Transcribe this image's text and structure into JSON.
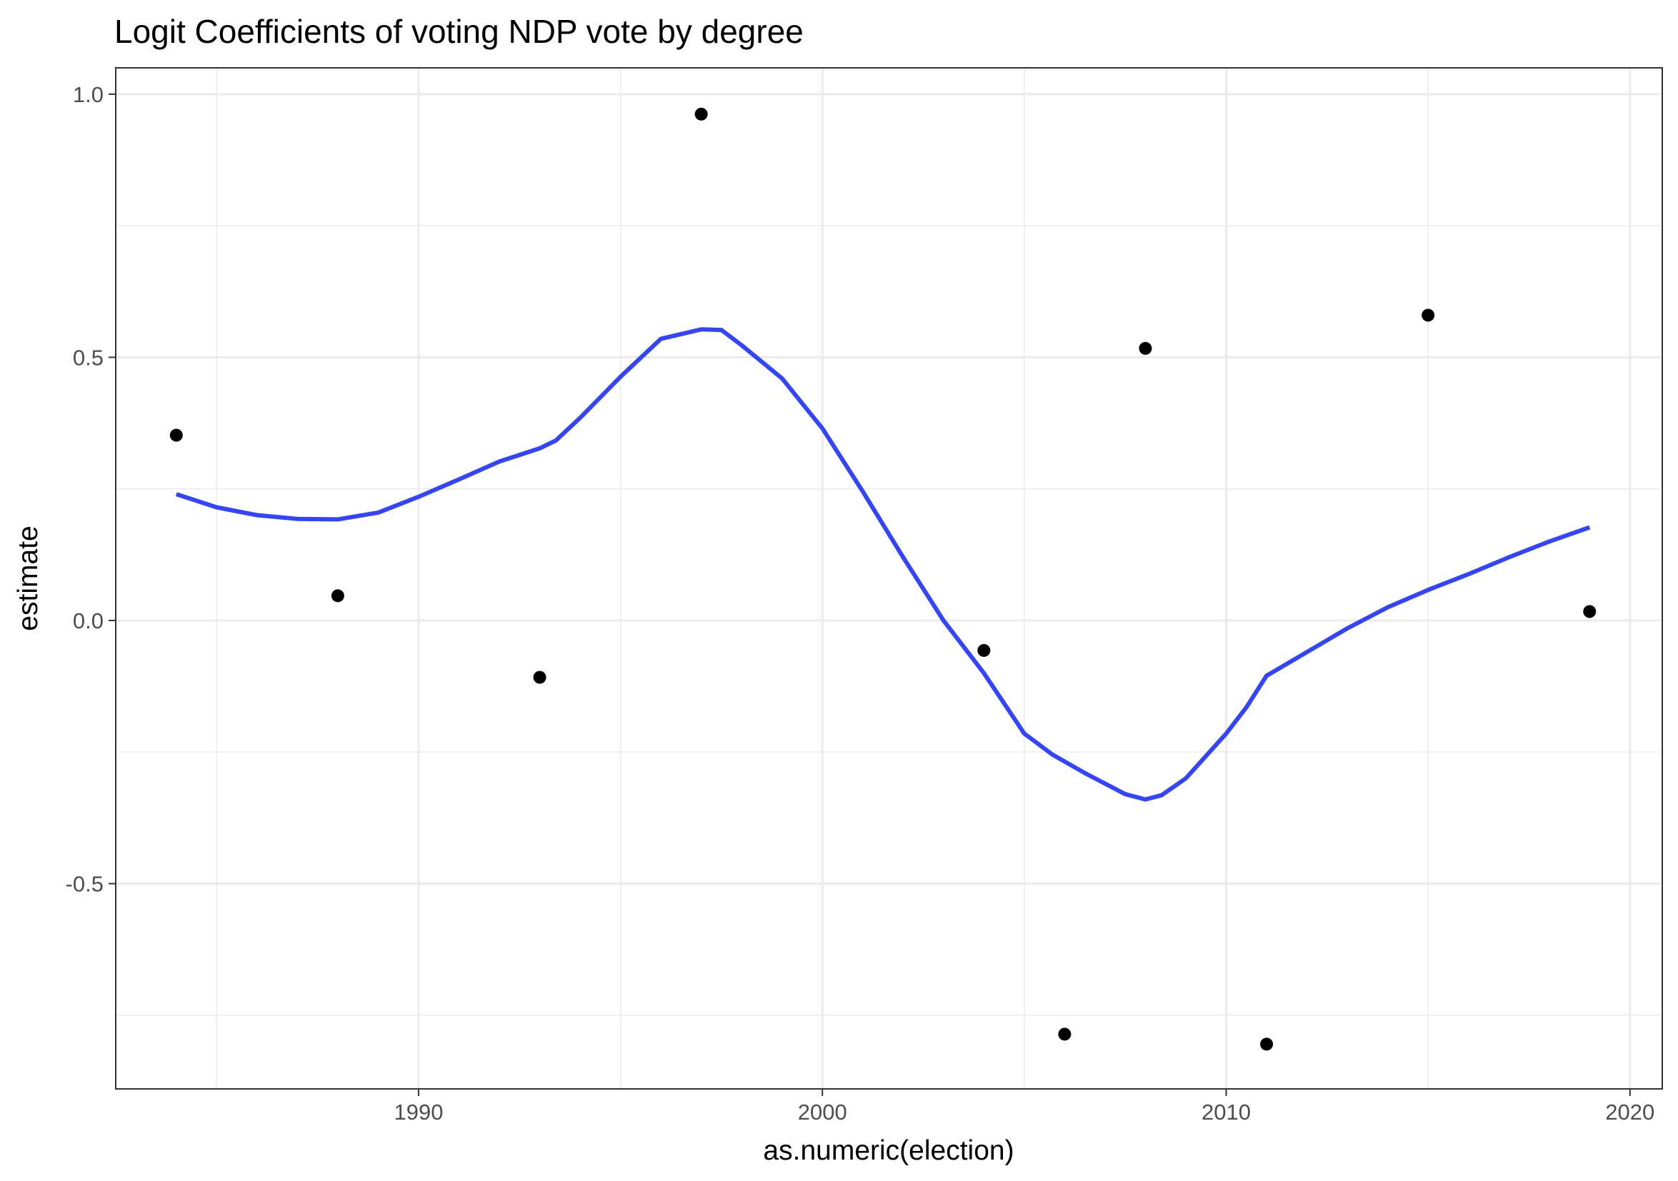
{
  "chart_data": {
    "type": "scatter",
    "title": "Logit Coefficients of voting NDP vote by degree",
    "xlabel": "as.numeric(election)",
    "ylabel": "estimate",
    "xlim": [
      1982.5,
      2020.8
    ],
    "ylim": [
      -0.89,
      1.05
    ],
    "x_ticks": [
      1990,
      2000,
      2010,
      2020
    ],
    "x_tick_labels": [
      "1990",
      "2000",
      "2010",
      "2020"
    ],
    "y_ticks": [
      -0.5,
      0.0,
      0.5,
      1.0
    ],
    "y_tick_labels": [
      "-0.5",
      "0.0",
      "0.5",
      "1.0"
    ],
    "x_minor": [
      1985,
      1995,
      2005,
      2015
    ],
    "y_minor": [
      -0.75,
      -0.25,
      0.25,
      0.75
    ],
    "grid": true,
    "colors": {
      "points": "#000000",
      "smooth": "#3344ff",
      "grid": "#ebebeb",
      "panel_border": "#333333"
    },
    "points": [
      {
        "x": 1984,
        "y": 0.352
      },
      {
        "x": 1988,
        "y": 0.047
      },
      {
        "x": 1993,
        "y": -0.108
      },
      {
        "x": 1997,
        "y": 0.962
      },
      {
        "x": 2004,
        "y": -0.057
      },
      {
        "x": 2006,
        "y": -0.786
      },
      {
        "x": 2008,
        "y": 0.517
      },
      {
        "x": 2011,
        "y": -0.805
      },
      {
        "x": 2015,
        "y": 0.58
      },
      {
        "x": 2019,
        "y": 0.017
      }
    ],
    "smooth_line": [
      {
        "x": 1984.0,
        "y": 0.24
      },
      {
        "x": 1985.0,
        "y": 0.215
      },
      {
        "x": 1986.0,
        "y": 0.2
      },
      {
        "x": 1987.0,
        "y": 0.193
      },
      {
        "x": 1988.0,
        "y": 0.192
      },
      {
        "x": 1989.0,
        "y": 0.205
      },
      {
        "x": 1990.0,
        "y": 0.235
      },
      {
        "x": 1991.0,
        "y": 0.268
      },
      {
        "x": 1992.0,
        "y": 0.302
      },
      {
        "x": 1993.0,
        "y": 0.327
      },
      {
        "x": 1993.4,
        "y": 0.342
      },
      {
        "x": 1994.0,
        "y": 0.385
      },
      {
        "x": 1995.0,
        "y": 0.463
      },
      {
        "x": 1996.0,
        "y": 0.535
      },
      {
        "x": 1997.0,
        "y": 0.553
      },
      {
        "x": 1997.5,
        "y": 0.552
      },
      {
        "x": 1998.0,
        "y": 0.523
      },
      {
        "x": 1999.0,
        "y": 0.46
      },
      {
        "x": 2000.0,
        "y": 0.365
      },
      {
        "x": 2001.0,
        "y": 0.245
      },
      {
        "x": 2002.0,
        "y": 0.12
      },
      {
        "x": 2003.0,
        "y": 0.0
      },
      {
        "x": 2004.0,
        "y": -0.1
      },
      {
        "x": 2005.0,
        "y": -0.215
      },
      {
        "x": 2005.7,
        "y": -0.255
      },
      {
        "x": 2006.5,
        "y": -0.29
      },
      {
        "x": 2007.5,
        "y": -0.33
      },
      {
        "x": 2008.0,
        "y": -0.34
      },
      {
        "x": 2008.4,
        "y": -0.332
      },
      {
        "x": 2009.0,
        "y": -0.3
      },
      {
        "x": 2010.0,
        "y": -0.215
      },
      {
        "x": 2010.5,
        "y": -0.165
      },
      {
        "x": 2011.0,
        "y": -0.105
      },
      {
        "x": 2012.0,
        "y": -0.06
      },
      {
        "x": 2013.0,
        "y": -0.015
      },
      {
        "x": 2014.0,
        "y": 0.025
      },
      {
        "x": 2015.0,
        "y": 0.058
      },
      {
        "x": 2016.0,
        "y": 0.088
      },
      {
        "x": 2017.0,
        "y": 0.12
      },
      {
        "x": 2018.0,
        "y": 0.15
      },
      {
        "x": 2019.0,
        "y": 0.177
      }
    ]
  }
}
